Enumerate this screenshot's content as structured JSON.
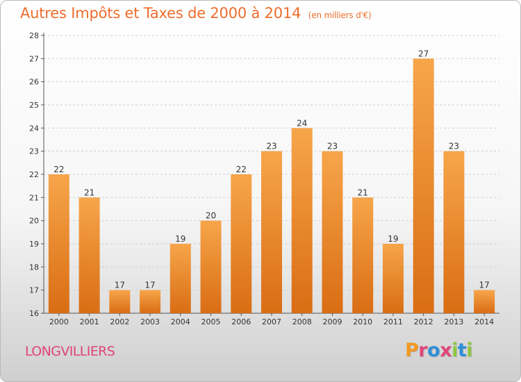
{
  "chart_data": {
    "type": "bar",
    "title": "Autres Impôts et Taxes de 2000 à 2014",
    "unit_label": "(en milliers d'€)",
    "categories": [
      "2000",
      "2001",
      "2002",
      "2003",
      "2004",
      "2005",
      "2006",
      "2007",
      "2008",
      "2009",
      "2010",
      "2011",
      "2012",
      "2013",
      "2014"
    ],
    "values": [
      22,
      21,
      17,
      17,
      19,
      20,
      22,
      23,
      24,
      23,
      21,
      19,
      27,
      23,
      17
    ],
    "data_labels": [
      "22",
      "21",
      "17",
      "17",
      "19",
      "20",
      "22",
      "23",
      "24",
      "23",
      "21",
      "19",
      "27",
      "23",
      "17"
    ],
    "ylim": [
      16,
      28
    ],
    "yticks": [
      "16",
      "17",
      "18",
      "19",
      "20",
      "21",
      "22",
      "23",
      "24",
      "25",
      "26",
      "27",
      "28"
    ],
    "grid": "horizontal-dashed",
    "bar_color": "#f08c2c"
  },
  "footer": {
    "commune": "LONGVILLIERS",
    "logo_letters": [
      "P",
      "r",
      "o",
      "x",
      "i",
      "t",
      "i"
    ],
    "logo_colors": [
      "#f29a21",
      "#e0457b",
      "#2f8fd6",
      "#e0457b",
      "#8cc63f",
      "#2f8fd6",
      "#8cc63f"
    ]
  }
}
